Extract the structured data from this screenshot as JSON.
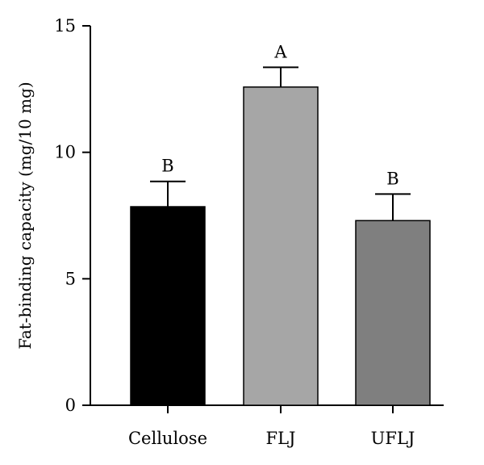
{
  "chart_data": {
    "type": "bar",
    "title": "",
    "xlabel": "",
    "ylabel": "Fat-binding capacity (mg/10 mg)",
    "ylim": [
      0,
      15
    ],
    "yticks": [
      0,
      5,
      10,
      15
    ],
    "grid": false,
    "categories": [
      "Cellulose",
      "FLJ",
      "UFLJ"
    ],
    "values": [
      7.85,
      12.58,
      7.3
    ],
    "errors": [
      1.0,
      0.78,
      1.05
    ],
    "significance_labels": [
      "B",
      "A",
      "B"
    ],
    "colors": [
      "#000000",
      "#a6a6a6",
      "#7f7f7f"
    ]
  }
}
